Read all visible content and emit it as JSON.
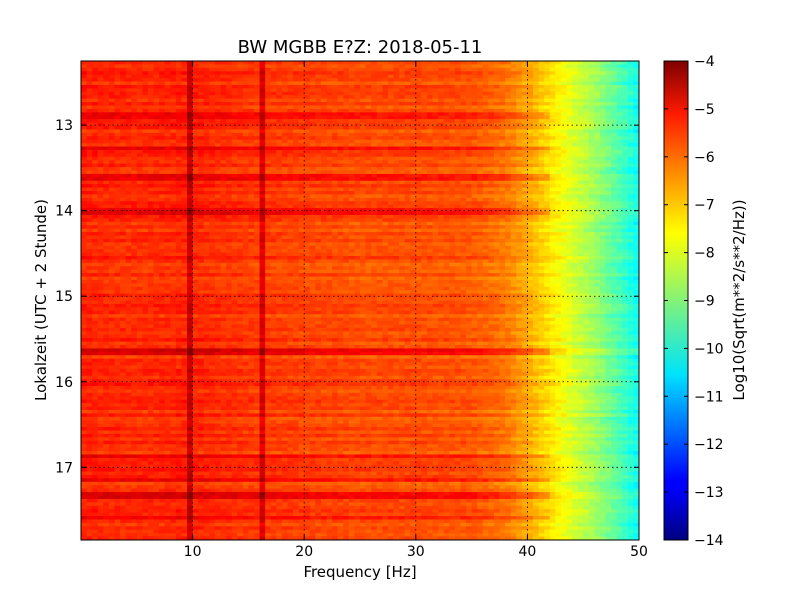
{
  "chart_data": {
    "type": "heatmap",
    "title": "BW MGBB E?Z: 2018-05-11",
    "xlabel": "Frequency [Hz]",
    "ylabel": "Lokalzeit (UTC + 2 Stunde)",
    "xlim": [
      0,
      50
    ],
    "ylim": [
      12.25,
      17.85
    ],
    "x_ticks": [
      10,
      20,
      30,
      40,
      50
    ],
    "y_ticks": [
      13,
      14,
      15,
      16,
      17
    ],
    "grid": true,
    "colorbar": {
      "label": "Log10(Sqrt(m**2/s**2/Hz))",
      "range": [
        -14,
        -4
      ],
      "ticks": [
        -4,
        -5,
        -6,
        -7,
        -8,
        -9,
        -10,
        -11,
        -12,
        -13,
        -14
      ],
      "colormap": "jet"
    },
    "spectral_lines_hz": [
      9.9,
      16.3
    ],
    "bright_rows_hours": [
      12.88,
      13.27,
      13.62,
      14.02,
      15.65,
      16.87,
      17.14,
      17.34,
      17.6
    ],
    "level_vs_frequency": {
      "x": [
        0,
        5,
        10,
        15,
        20,
        25,
        30,
        35,
        38,
        40,
        42,
        44,
        46,
        48,
        50
      ],
      "y": [
        -5.6,
        -5.7,
        -5.6,
        -5.8,
        -5.9,
        -6.0,
        -6.0,
        -6.1,
        -6.4,
        -6.9,
        -7.5,
        -8.1,
        -8.7,
        -9.4,
        -10.2
      ]
    }
  }
}
